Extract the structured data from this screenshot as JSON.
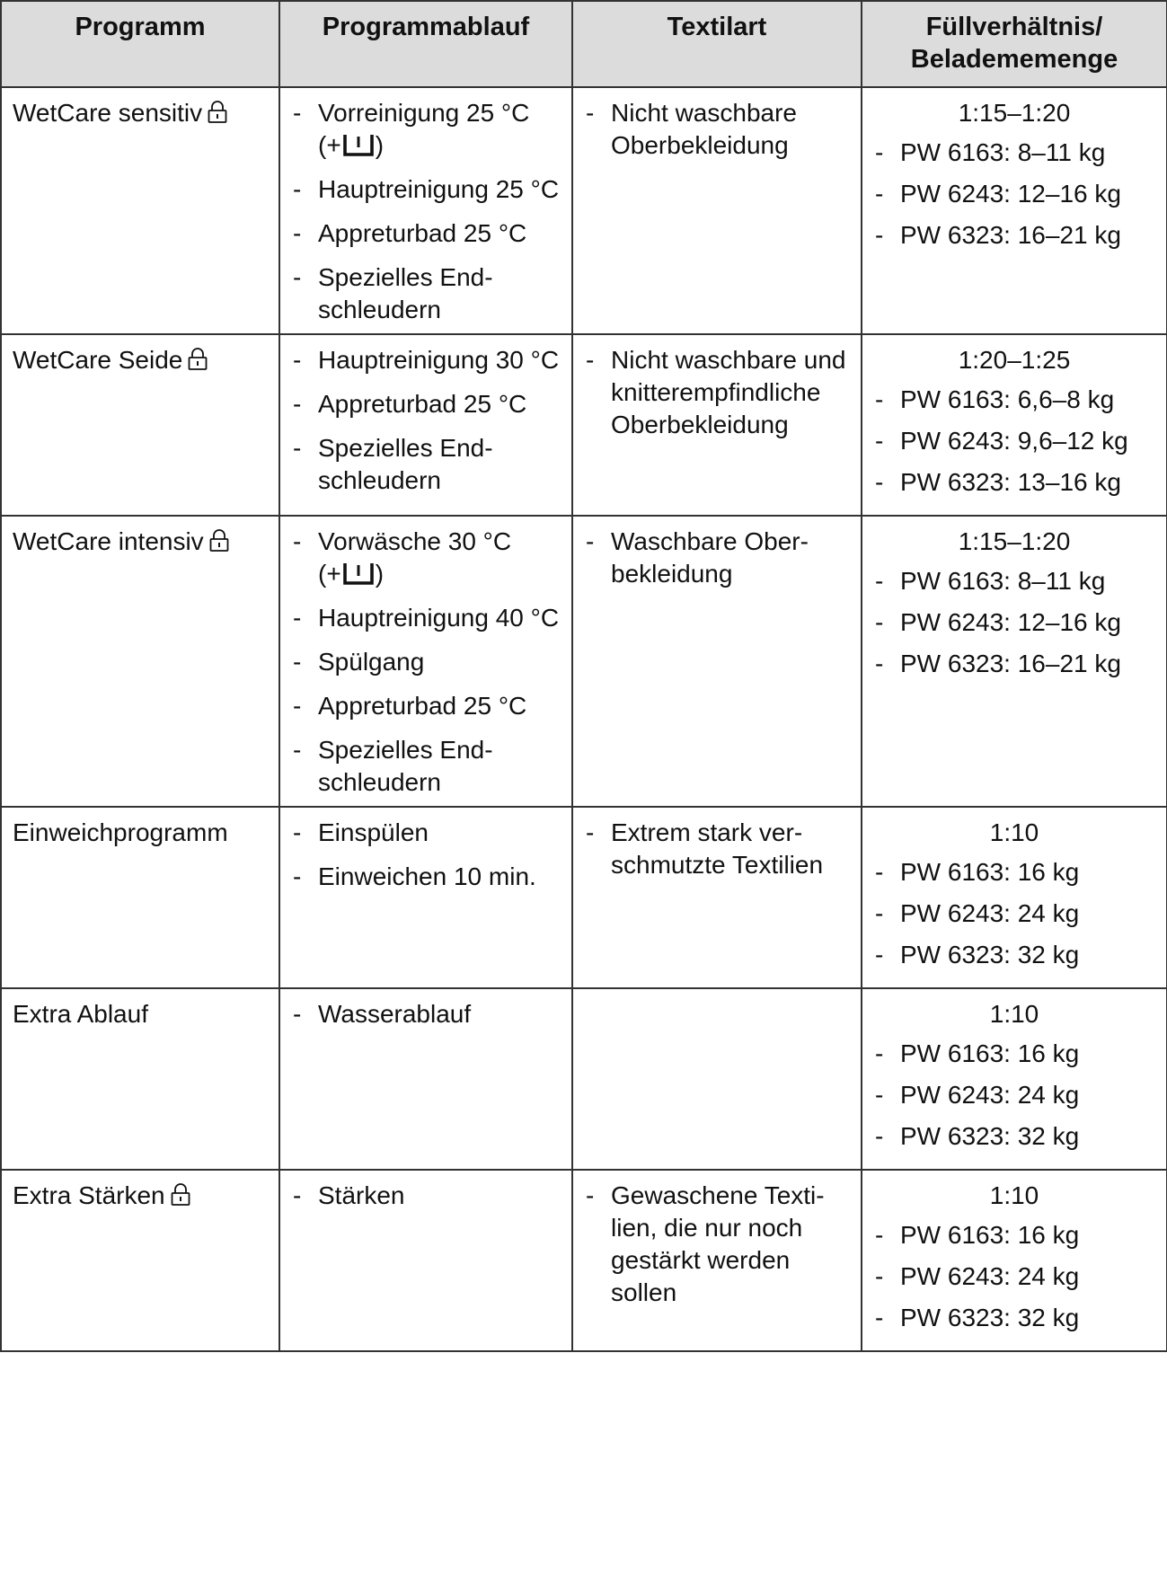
{
  "headers": {
    "programm": "Programm",
    "ablauf": "Programmablauf",
    "textil": "Textilart",
    "fuell_line1": "Füllverhältnis/",
    "fuell_line2": "Beladememenge"
  },
  "rows": [
    {
      "name": "WetCare sensitiv",
      "locked": true,
      "steps": [
        {
          "text": "Vorreinigung 25 °C",
          "prefill": "(+",
          "suffix": ")"
        },
        {
          "text": "Hauptreinigung 25 °C"
        },
        {
          "text": "Appreturbad 25 °C"
        },
        {
          "text": "Spezielles End­schleudern"
        }
      ],
      "textil": [
        "Nicht waschbare Oberbekleidung"
      ],
      "ratio": "1:15–1:20",
      "loads": [
        "PW 6163: 8–11 kg",
        "PW 6243: 12–16 kg",
        "PW 6323: 16–21 kg"
      ]
    },
    {
      "name": "WetCare Seide",
      "locked": true,
      "steps": [
        {
          "text": "Hauptreinigung 30 °C"
        },
        {
          "text": "Appreturbad 25 °C"
        },
        {
          "text": "Spezielles End­schleudern"
        }
      ],
      "textil": [
        "Nicht waschbare und knitteremp­findliche Oberbe­kleidung"
      ],
      "ratio": "1:20–1:25",
      "loads": [
        "PW 6163: 6,6–8 kg",
        "PW 6243: 9,6–12 kg",
        "PW 6323: 13–16 kg"
      ]
    },
    {
      "name": "WetCare intensiv",
      "locked": true,
      "steps": [
        {
          "text": "Vorwäsche 30 °C",
          "prefill": "(+",
          "suffix": ")"
        },
        {
          "text": "Hauptreinigung 40 °C"
        },
        {
          "text": "Spülgang"
        },
        {
          "text": "Appreturbad 25 °C"
        },
        {
          "text": "Spezielles End­schleudern"
        }
      ],
      "textil": [
        "Waschbare Ober­bekleidung"
      ],
      "ratio": "1:15–1:20",
      "loads": [
        "PW 6163: 8–11 kg",
        "PW 6243: 12–16 kg",
        "PW 6323: 16–21 kg"
      ]
    },
    {
      "name": "Einweichprogramm",
      "locked": false,
      "steps": [
        {
          "text": "Einspülen"
        },
        {
          "text": "Einweichen 10 min."
        }
      ],
      "textil": [
        "Extrem stark ver­schmutzte Textilien"
      ],
      "ratio": "1:10",
      "loads": [
        "PW 6163: 16 kg",
        "PW 6243: 24 kg",
        "PW 6323: 32 kg"
      ]
    },
    {
      "name": "Extra Ablauf",
      "locked": false,
      "steps": [
        {
          "text": "Wasserablauf"
        }
      ],
      "textil": [],
      "ratio": "1:10",
      "loads": [
        "PW 6163: 16 kg",
        "PW 6243: 24 kg",
        "PW 6323: 32 kg"
      ]
    },
    {
      "name": "Extra Stärken",
      "locked": true,
      "steps": [
        {
          "text": "Stärken"
        }
      ],
      "textil": [
        "Gewaschene Texti­lien, die nur noch gestärkt werden sollen"
      ],
      "ratio": "1:10",
      "loads": [
        "PW 6163: 16 kg",
        "PW 6243: 24 kg",
        "PW 6323: 32 kg"
      ]
    }
  ]
}
